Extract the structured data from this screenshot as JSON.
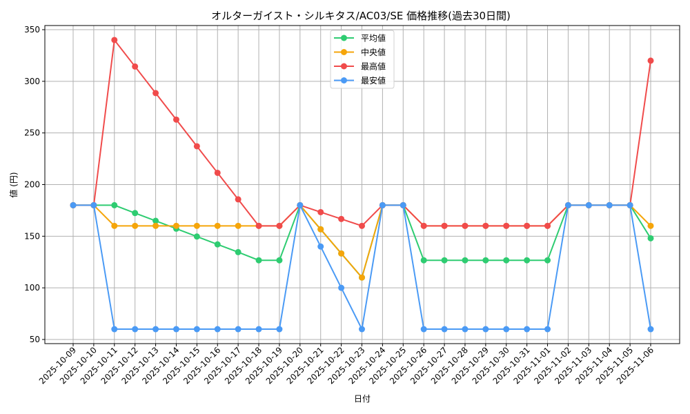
{
  "chart_data": {
    "type": "line",
    "title": "オルターガイスト・シルキタス/AC03/SE 価格推移(過去30日間)",
    "xlabel": "日付",
    "ylabel": "値 (円)",
    "ylim": [
      45,
      355
    ],
    "yticks": [
      50,
      100,
      150,
      200,
      250,
      300,
      350
    ],
    "grid": true,
    "legend_position": "upper center",
    "x": [
      "2025-10-09",
      "2025-10-10",
      "2025-10-11",
      "2025-10-12",
      "2025-10-13",
      "2025-10-14",
      "2025-10-15",
      "2025-10-16",
      "2025-10-17",
      "2025-10-18",
      "2025-10-19",
      "2025-10-20",
      "2025-10-21",
      "2025-10-22",
      "2025-10-23",
      "2025-10-24",
      "2025-10-25",
      "2025-10-26",
      "2025-10-27",
      "2025-10-28",
      "2025-10-29",
      "2025-10-30",
      "2025-10-31",
      "2025-11-01",
      "2025-11-02",
      "2025-11-03",
      "2025-11-04",
      "2025-11-05",
      "2025-11-06"
    ],
    "series": [
      {
        "name": "平均値",
        "color": "#2ecc71",
        "values": [
          180,
          180,
          180,
          172.4,
          164.9,
          157.3,
          149.7,
          142.1,
          134.6,
          126.7,
          126.7,
          180,
          156.7,
          133.3,
          110,
          180,
          180,
          126.7,
          126.7,
          126.7,
          126.7,
          126.7,
          126.7,
          126.7,
          180,
          180,
          180,
          180,
          148
        ]
      },
      {
        "name": "中央値",
        "color": "#f5a50a",
        "values": [
          180,
          180,
          160,
          160,
          160,
          160,
          160,
          160,
          160,
          160,
          160,
          180,
          156.7,
          133.3,
          110,
          180,
          180,
          160,
          160,
          160,
          160,
          160,
          160,
          160,
          180,
          180,
          180,
          180,
          160
        ]
      },
      {
        "name": "最高値",
        "color": "#f04b4b",
        "values": [
          180,
          180,
          340,
          314.3,
          288.6,
          262.9,
          237.1,
          211.4,
          185.7,
          160,
          160,
          180,
          173.3,
          166.7,
          160,
          180,
          180,
          160,
          160,
          160,
          160,
          160,
          160,
          160,
          180,
          180,
          180,
          180,
          320
        ]
      },
      {
        "name": "最安値",
        "color": "#4a9af5",
        "values": [
          180,
          180,
          60,
          60,
          60,
          60,
          60,
          60,
          60,
          60,
          60,
          180,
          140,
          100,
          60,
          180,
          180,
          60,
          60,
          60,
          60,
          60,
          60,
          60,
          180,
          180,
          180,
          180,
          60
        ]
      }
    ]
  }
}
